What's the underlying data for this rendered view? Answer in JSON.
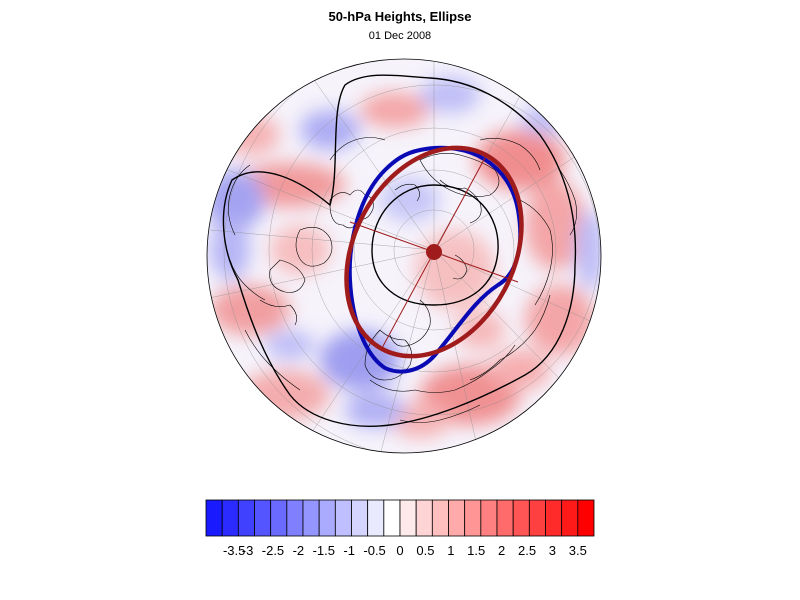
{
  "header": {
    "title": "50-hPa Heights, Ellipse",
    "date": "01 Dec 2008"
  },
  "colorbar": {
    "colors": [
      "#1a1aff",
      "#2b2bff",
      "#4040ff",
      "#5555ff",
      "#6a6aff",
      "#8080ff",
      "#9595ff",
      "#aaaaff",
      "#bfbfff",
      "#d4d4ff",
      "#eaeaff",
      "#ffffff",
      "#ffeaea",
      "#ffd4d4",
      "#ffbfbf",
      "#ffaaaa",
      "#ff9595",
      "#ff8080",
      "#ff6a6a",
      "#ff5555",
      "#ff4040",
      "#ff2b2b",
      "#ff1a1a",
      "#ff0000"
    ],
    "labels": [
      "-3.5",
      "-3",
      "-2.5",
      "-2",
      "-1.5",
      "-1",
      "-0.5",
      "0",
      "0.5",
      "1",
      "1.5",
      "2",
      "2.5",
      "3",
      "3.5"
    ]
  },
  "map": {
    "projection": "north-polar-stereographic",
    "ellipse_color": "#a01c1c",
    "vortex_contour_color": "#0a0ab4",
    "contour_color": "#000000",
    "coastline_color": "#000000",
    "grid_color": "#8a8a8a"
  }
}
